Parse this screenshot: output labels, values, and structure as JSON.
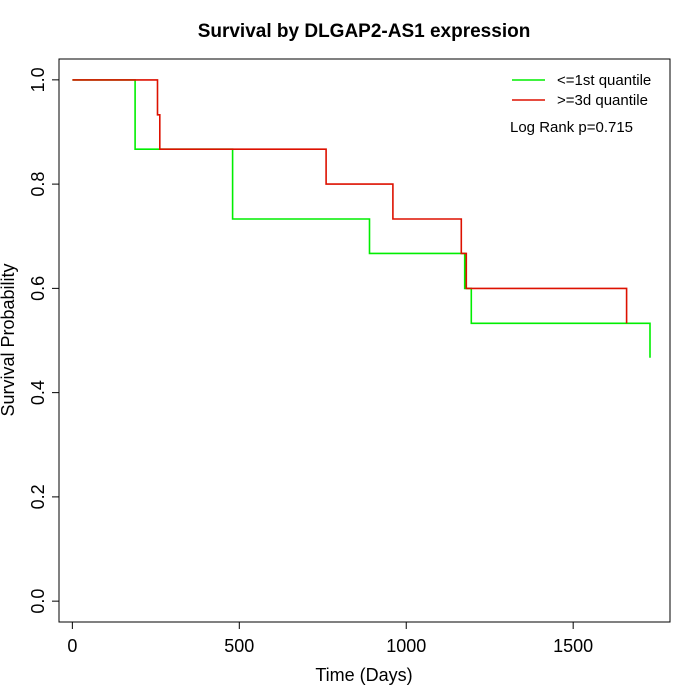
{
  "chart_data": {
    "type": "line",
    "title": "Survival by DLGAP2-AS1 expression",
    "xlabel": "Time (Days)",
    "ylabel": "Survival Probability",
    "xlim": [
      -40,
      1790
    ],
    "ylim": [
      -0.04,
      1.04
    ],
    "xticks": [
      0,
      500,
      1000,
      1500
    ],
    "yticks": [
      0.0,
      0.2,
      0.4,
      0.6,
      0.8,
      1.0
    ],
    "xtick_labels": [
      "0",
      "500",
      "1000",
      "1500"
    ],
    "ytick_labels": [
      "0.0",
      "0.2",
      "0.4",
      "0.6",
      "0.8",
      "1.0"
    ],
    "grid": false,
    "legend_position": "top-right",
    "step": true,
    "series": [
      {
        "name": "<=1st quantile",
        "color": "#00ee00",
        "x": [
          0,
          170,
          188,
          330,
          480,
          890,
          1175,
          1195,
          1730
        ],
        "y": [
          1.0,
          1.0,
          0.867,
          0.867,
          0.733,
          0.667,
          0.6,
          0.533,
          0.467
        ]
      },
      {
        "name": ">=3d quantile",
        "color": "#dd1100",
        "x": [
          0,
          130,
          255,
          262,
          760,
          960,
          1165,
          1180,
          1660
        ],
        "y": [
          1.0,
          1.0,
          0.933,
          0.867,
          0.8,
          0.733,
          0.667,
          0.6,
          0.533
        ]
      }
    ],
    "annotation": "Log Rank p=0.715"
  }
}
